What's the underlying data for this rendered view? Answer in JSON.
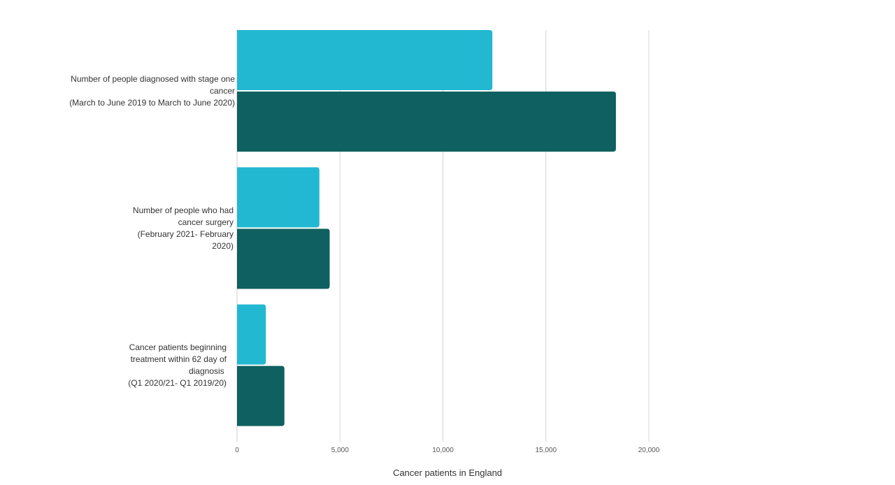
{
  "chart_data": {
    "type": "bar",
    "orientation": "horizontal",
    "categories": [
      [
        "Number of people diagnosed with stage one",
        "cancer",
        "(March to June 2019 to March to June 2020)"
      ],
      [
        "Number of people who had",
        "cancer surgery",
        "(February 2021- February",
        "2020)"
      ],
      [
        "Cancer patients beginning",
        "treatment within 62 day of",
        "diagnosis ",
        "(Q1 2020/21- Q1 2019/20)"
      ]
    ],
    "series": [
      {
        "color": "#22b8d1",
        "values": [
          12400,
          4000,
          1400
        ]
      },
      {
        "color": "#0f6060",
        "values": [
          18400,
          4500,
          2300
        ]
      }
    ],
    "xlim": [
      0,
      20000
    ],
    "xticks": [
      0,
      5000,
      10000,
      15000,
      20000
    ],
    "xtick_labels": [
      "0",
      "5,000",
      "10,000",
      "15,000",
      "20,000"
    ],
    "xlabel": "Cancer patients in England",
    "ylabel": "",
    "grid": true,
    "legend": "none"
  }
}
